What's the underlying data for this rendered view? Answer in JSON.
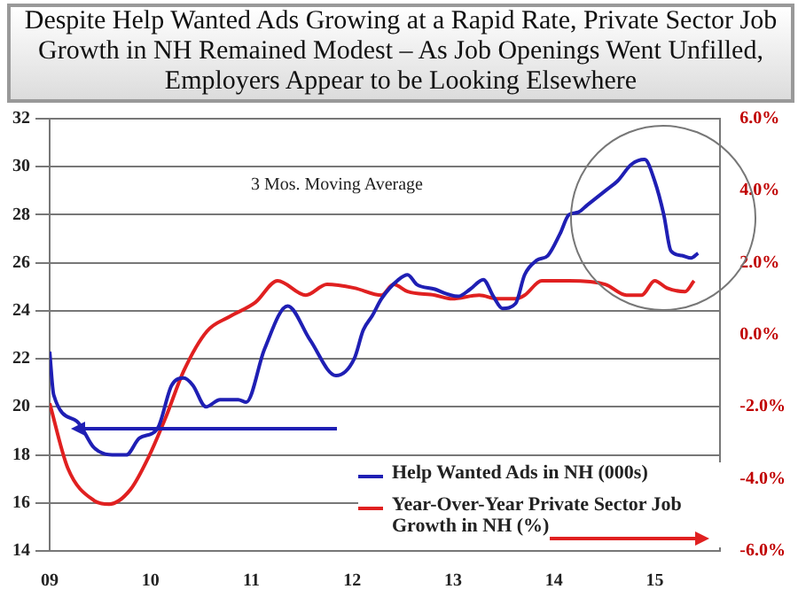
{
  "chart_data": {
    "type": "line",
    "title": "Despite Help Wanted Ads Growing at a Rapid Rate, Private Sector Job Growth in NH Remained Modest – As Job Openings Went Unfilled, Employers Appear to be Looking Elsewhere",
    "annotations": [
      "3 Mos. Moving Average"
    ],
    "series": [
      {
        "name": "Help Wanted Ads in NH (000s)",
        "color": "#1f1fb4",
        "x": [
          2009.0,
          2009.04,
          2009.27,
          2009.44,
          2009.62,
          2009.76,
          2009.89,
          2010.07,
          2010.21,
          2010.33,
          2010.42,
          2010.55,
          2010.69,
          2010.87,
          2010.95,
          2011.13,
          2011.36,
          2011.58,
          2011.84,
          2012.02,
          2012.11,
          2012.2,
          2012.29,
          2012.46,
          2012.55,
          2012.64,
          2012.82,
          2012.94,
          2013.05,
          2013.17,
          2013.3,
          2013.4,
          2013.49,
          2013.62,
          2013.71,
          2013.83,
          2013.94,
          2014.06,
          2014.15,
          2014.24,
          2014.33,
          2014.51,
          2014.63,
          2014.77,
          2014.9,
          2015.0,
          2015.09,
          2015.16,
          2015.27,
          2015.36,
          2015.43
        ],
        "values": [
          22.3,
          20.5,
          19.4,
          18.3,
          18.0,
          18.0,
          18.7,
          19.1,
          20.9,
          21.2,
          20.9,
          20.0,
          20.3,
          20.3,
          20.2,
          22.4,
          24.2,
          22.8,
          21.3,
          22.0,
          23.2,
          23.8,
          24.5,
          25.3,
          25.5,
          25.1,
          24.9,
          24.7,
          24.6,
          24.9,
          25.3,
          24.6,
          24.1,
          24.3,
          25.5,
          26.1,
          26.3,
          27.2,
          28.0,
          28.1,
          28.4,
          29.0,
          29.4,
          30.1,
          30.3,
          29.4,
          28.0,
          26.5,
          26.3,
          26.2,
          26.4
        ]
      },
      {
        "name": "Year-Over-Year Private Sector Job Growth in NH (%)",
        "color": "#e02020",
        "axis": "y2",
        "x": [
          2009.0,
          2009.18,
          2009.44,
          2009.59,
          2009.8,
          2009.98,
          2010.15,
          2010.33,
          2010.56,
          2010.78,
          2011.04,
          2011.26,
          2011.54,
          2011.75,
          2012.02,
          2012.29,
          2012.41,
          2012.55,
          2012.82,
          2012.99,
          2013.26,
          2013.44,
          2013.62,
          2013.71,
          2013.88,
          2014.15,
          2014.51,
          2014.72,
          2014.87,
          2015.0,
          2015.12,
          2015.3,
          2015.39
        ],
        "values": [
          -1.9,
          -3.7,
          -4.6,
          -4.7,
          -4.3,
          -3.4,
          -2.3,
          -1.0,
          0.1,
          0.5,
          0.9,
          1.5,
          1.1,
          1.4,
          1.3,
          1.1,
          1.4,
          1.2,
          1.1,
          1.0,
          1.1,
          1.0,
          1.0,
          1.1,
          1.5,
          1.5,
          1.4,
          1.1,
          1.1,
          1.5,
          1.3,
          1.2,
          1.5
        ]
      }
    ],
    "xlim": [
      2009,
      2015.65
    ],
    "xticks": [
      {
        "value": 2009,
        "label": "09"
      },
      {
        "value": 2010,
        "label": "10"
      },
      {
        "value": 2011,
        "label": "11"
      },
      {
        "value": 2012,
        "label": "12"
      },
      {
        "value": 2013,
        "label": "13"
      },
      {
        "value": 2014,
        "label": "14"
      },
      {
        "value": 2015,
        "label": "15"
      }
    ],
    "ylim": [
      14,
      32
    ],
    "yticks": [
      14,
      16,
      18,
      20,
      22,
      24,
      26,
      28,
      30,
      32
    ],
    "y2lim": [
      -6,
      6
    ],
    "y2ticks": [
      {
        "value": -6,
        "label": "-6.0%"
      },
      {
        "value": -4,
        "label": "-4.0%"
      },
      {
        "value": -2,
        "label": "-2.0%"
      },
      {
        "value": 0,
        "label": "0.0%"
      },
      {
        "value": 2,
        "label": "2.0%"
      },
      {
        "value": 4,
        "label": "4.0%"
      },
      {
        "value": 6,
        "label": "6.0%"
      }
    ],
    "grid": "y",
    "legend": "bottom right",
    "marker": "none",
    "line_style": "solid"
  }
}
